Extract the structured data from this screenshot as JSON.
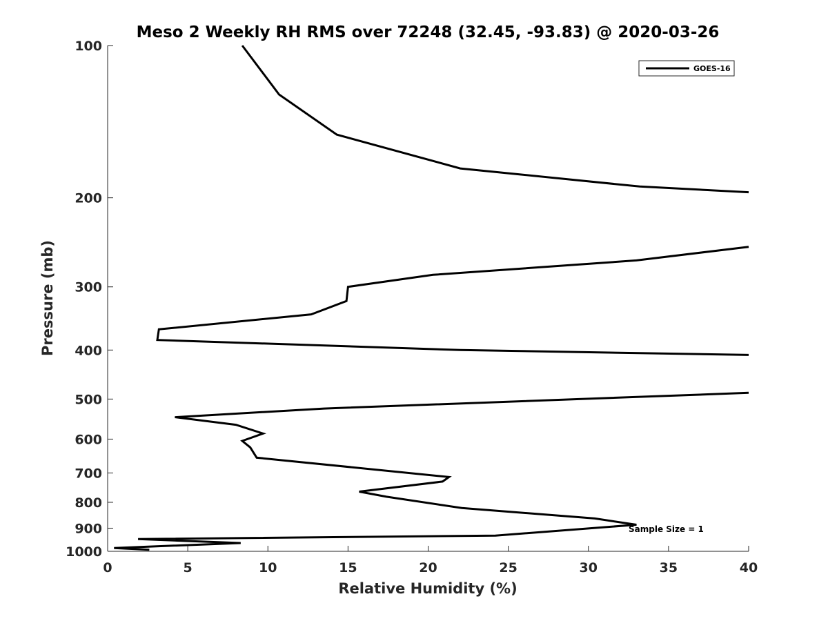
{
  "chart_data": {
    "type": "line",
    "title": "Meso 2 Weekly RH RMS over 72248 (32.45, -93.83) @ 2020-03-26",
    "xlabel": "Relative Humidity (%)",
    "ylabel": "Pressure (mb)",
    "xlim": [
      0,
      40
    ],
    "ylim": [
      1000,
      100
    ],
    "yscale": "log",
    "grid": false,
    "legend_position": "top-right",
    "xticks": [
      0,
      5,
      10,
      15,
      20,
      25,
      30,
      35,
      40
    ],
    "yticks": [
      100,
      200,
      300,
      400,
      500,
      600,
      700,
      800,
      900,
      1000
    ],
    "annotation": "Sample Size = 1",
    "series": [
      {
        "name": "GOES-16",
        "color": "#000000",
        "points": [
          [
            8.4,
            100
          ],
          [
            10.7,
            125
          ],
          [
            14.3,
            150
          ],
          [
            22.0,
            175
          ],
          [
            33.2,
            190
          ],
          [
            40.0,
            195
          ],
          [
            null,
            null
          ],
          [
            40.0,
            250
          ],
          [
            33.0,
            266
          ],
          [
            20.3,
            284
          ],
          [
            15.0,
            300
          ],
          [
            14.9,
            320
          ],
          [
            12.7,
            340
          ],
          [
            3.2,
            364
          ],
          [
            3.1,
            382
          ],
          [
            22.0,
            400
          ],
          [
            40.0,
            409
          ],
          [
            null,
            null
          ],
          [
            40.0,
            486
          ],
          [
            13.5,
            522
          ],
          [
            4.2,
            543
          ],
          [
            8.0,
            562
          ],
          [
            9.7,
            585
          ],
          [
            8.4,
            605
          ],
          [
            8.9,
            623
          ],
          [
            9.3,
            653
          ],
          [
            21.3,
            713
          ],
          [
            20.9,
            728
          ],
          [
            15.7,
            762
          ],
          [
            17.4,
            780
          ],
          [
            22.1,
            821
          ],
          [
            30.4,
            861
          ],
          [
            33.0,
            886
          ],
          [
            24.2,
            931
          ],
          [
            1.9,
            946
          ],
          [
            8.3,
            963
          ],
          [
            0.4,
            985
          ],
          [
            2.6,
            993
          ]
        ]
      }
    ]
  }
}
